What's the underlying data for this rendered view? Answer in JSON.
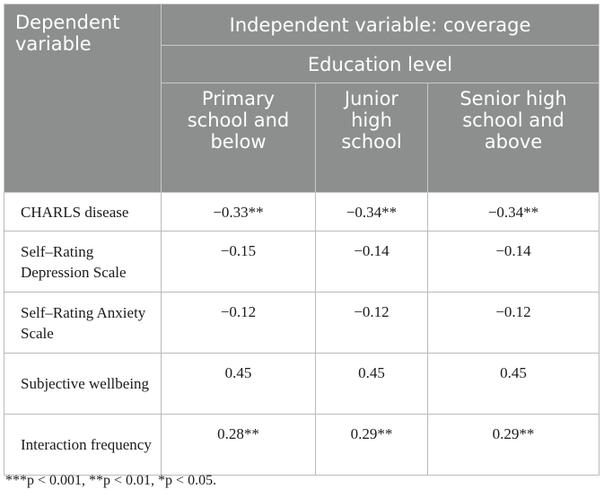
{
  "table": {
    "header": {
      "dependent": "Dependent variable",
      "independent": "Independent variable: coverage",
      "group": "Education level",
      "columns": [
        "Primary school and below",
        "Junior high school",
        "Senior high school and above"
      ]
    },
    "rows": [
      {
        "label": "CHARLS disease",
        "values": [
          "−0.33**",
          "−0.34**",
          "−0.34**"
        ]
      },
      {
        "label": "Self–Rating Depression Scale",
        "values": [
          "−0.15",
          "−0.14",
          "−0.14"
        ]
      },
      {
        "label": "Self–Rating Anxiety Scale",
        "values": [
          "−0.12",
          "−0.12",
          "−0.12"
        ]
      },
      {
        "label": "Subjective wellbeing",
        "values": [
          "0.45",
          "0.45",
          "0.45"
        ]
      },
      {
        "label": "Interaction frequency",
        "values": [
          "0.28**",
          "0.29**",
          "0.29**"
        ]
      }
    ],
    "footnote": "***p < 0.001, **p < 0.01, *p < 0.05."
  }
}
